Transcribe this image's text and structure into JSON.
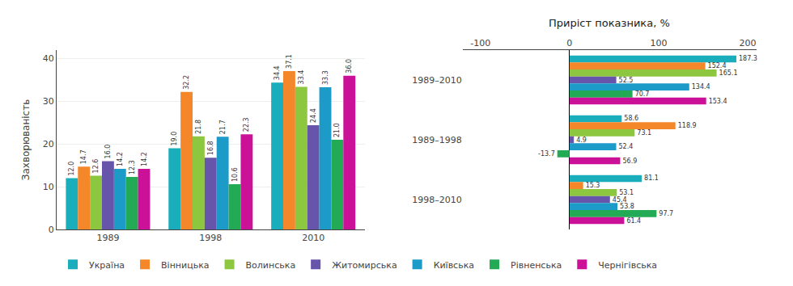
{
  "chart_data": [
    {
      "type": "bar",
      "categories": [
        "1989",
        "1998",
        "2010"
      ],
      "series": [
        {
          "name": "Україна",
          "color": "#1AADBB",
          "values": [
            12.0,
            19.0,
            34.4
          ],
          "value_labels": [
            "12.0",
            "19.0",
            "34.4"
          ]
        },
        {
          "name": "Вінницька",
          "color": "#F4872A",
          "values": [
            14.7,
            32.2,
            37.1
          ]
        },
        {
          "name": "Волинська",
          "color": "#8DC63F",
          "values": [
            12.6,
            21.8,
            33.4
          ]
        },
        {
          "name": "Житомирська",
          "color": "#6655AA",
          "values": [
            16.0,
            16.8,
            24.4
          ],
          "value_labels": [
            "16.0",
            "16.8",
            "24.4"
          ]
        },
        {
          "name": "Київська",
          "color": "#1C9BC9",
          "values": [
            14.2,
            21.7,
            33.3
          ]
        },
        {
          "name": "Рівненська",
          "color": "#22AA55",
          "values": [
            12.3,
            10.6,
            21.0
          ],
          "value_labels": [
            "12.3",
            "10.6",
            "21.0"
          ]
        },
        {
          "name": "Чернігівська",
          "color": "#CC1199",
          "values": [
            14.2,
            22.3,
            36.0
          ],
          "value_labels": [
            "14.2",
            "22.3",
            "36.0"
          ]
        }
      ],
      "ylabel": "Захворюваність",
      "ylim": [
        0,
        42
      ],
      "yticks": [
        0,
        10,
        20,
        30,
        40
      ],
      "grid": true,
      "data_labels": true,
      "legend": "bottom"
    },
    {
      "type": "bar",
      "orientation": "horizontal",
      "title": "Приріст показника, %",
      "categories": [
        "1989–2010",
        "1989–1998",
        "1998–2010"
      ],
      "series": [
        {
          "name": "Україна",
          "color": "#1AADBB",
          "values": [
            187.3,
            58.6,
            81.1
          ]
        },
        {
          "name": "Вінницька",
          "color": "#F4872A",
          "values": [
            152.4,
            118.9,
            15.3
          ]
        },
        {
          "name": "Волинська",
          "color": "#8DC63F",
          "values": [
            165.1,
            73.1,
            53.1
          ]
        },
        {
          "name": "Житомирська",
          "color": "#6655AA",
          "values": [
            52.5,
            4.9,
            45.4
          ]
        },
        {
          "name": "Київська",
          "color": "#1C9BC9",
          "values": [
            134.4,
            52.4,
            53.8
          ]
        },
        {
          "name": "Рівненська",
          "color": "#22AA55",
          "values": [
            70.7,
            -13.7,
            97.7
          ]
        },
        {
          "name": "Чернігівська",
          "color": "#CC1199",
          "values": [
            153.4,
            56.9,
            61.4
          ]
        }
      ],
      "xlim": [
        -120,
        210
      ],
      "xticks": [
        -100,
        0,
        100,
        200
      ],
      "grid": false,
      "data_labels": true
    }
  ]
}
